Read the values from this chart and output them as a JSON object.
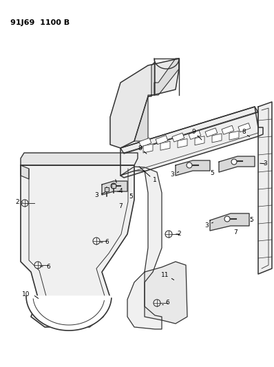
{
  "title_code": "91J69  1100 B",
  "bg": "#ffffff",
  "lc": "#333333",
  "tc": "#000000",
  "title_fs": 8,
  "label_fs": 6.5,
  "fig_w": 3.98,
  "fig_h": 5.33,
  "dpi": 100
}
